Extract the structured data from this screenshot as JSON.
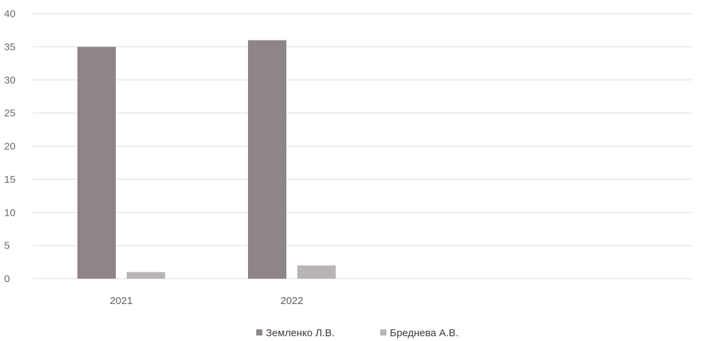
{
  "chart_data": {
    "type": "bar",
    "categories": [
      "2021",
      "2022"
    ],
    "series": [
      {
        "name": "Земленко Л.В.",
        "values": [
          35,
          36
        ],
        "color": "#8e8589"
      },
      {
        "name": "Бреднева А.В.",
        "values": [
          1,
          2
        ],
        "color": "#b8b4b5"
      }
    ],
    "title": "",
    "xlabel": "",
    "ylabel": "",
    "ylim": [
      0,
      40
    ],
    "yticks": [
      0,
      5,
      10,
      15,
      20,
      25,
      30,
      35,
      40
    ],
    "grid": true,
    "legend_position": "bottom"
  }
}
